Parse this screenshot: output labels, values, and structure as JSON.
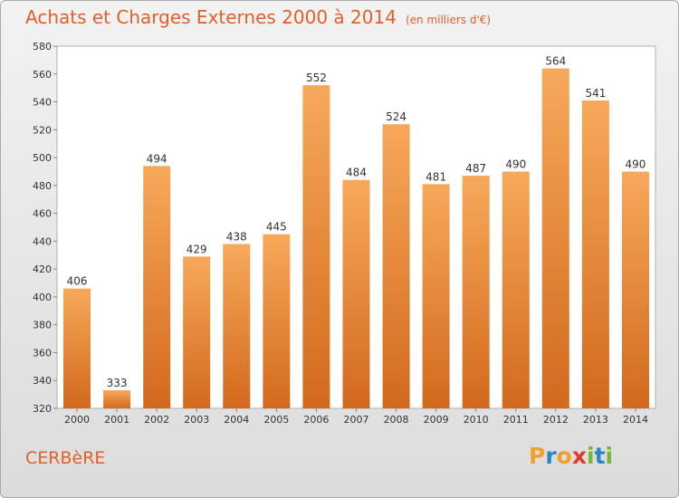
{
  "chart_data": {
    "type": "bar",
    "title": "Achats et Charges Externes 2000 à 2014",
    "subtitle": "(en milliers d'€)",
    "categories": [
      "2000",
      "2001",
      "2002",
      "2003",
      "2004",
      "2005",
      "2006",
      "2007",
      "2008",
      "2009",
      "2010",
      "2011",
      "2012",
      "2013",
      "2014"
    ],
    "values": [
      406,
      333,
      494,
      429,
      438,
      445,
      552,
      484,
      524,
      481,
      487,
      490,
      564,
      541,
      490
    ],
    "ylim": [
      320,
      580
    ],
    "yticks": [
      "320",
      "340",
      "360",
      "380",
      "400",
      "420",
      "440",
      "460",
      "480",
      "500",
      "520",
      "540",
      "560",
      "580"
    ],
    "grid": false,
    "xlabel": "",
    "ylabel": "",
    "bar_color": "#f0902c"
  },
  "footer": {
    "commune": "CERBèRE",
    "logo_letters": [
      "P",
      "r",
      "o",
      "x",
      "i",
      "t",
      "i"
    ],
    "logo_colors": [
      "#f0a12c",
      "#2a86c7",
      "#f0a12c",
      "#e03b2f",
      "#7ab536",
      "#2a86c7",
      "#7ab536"
    ]
  },
  "colors": {
    "title": "#e2602a",
    "bar_top": "#f7a95a",
    "bar_bottom": "#d2691e"
  }
}
